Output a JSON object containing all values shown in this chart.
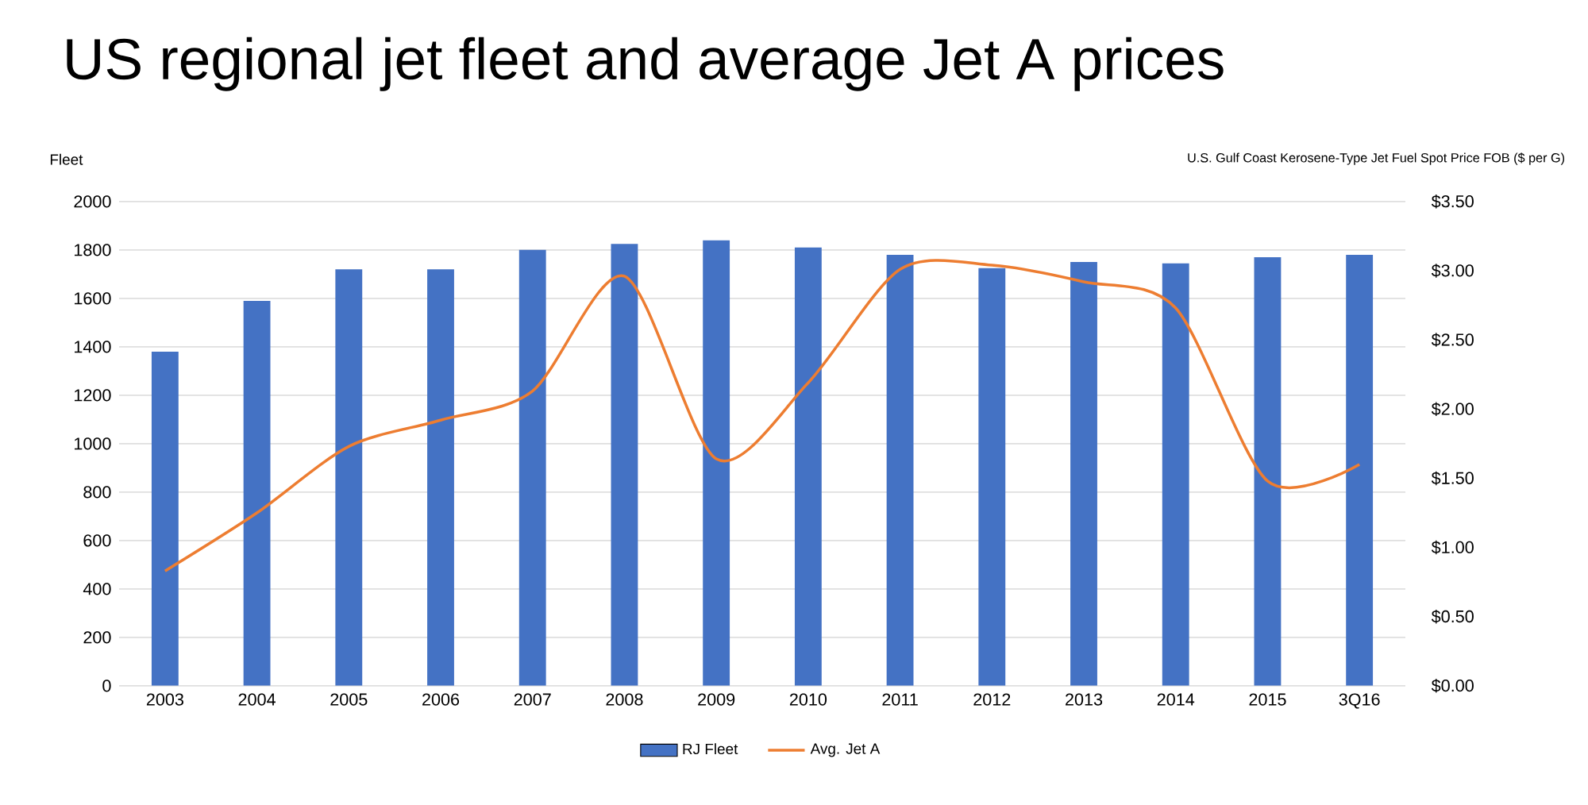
{
  "chart_data": {
    "type": "bar",
    "title": "US regional jet fleet and average Jet A prices",
    "ylabel": "Fleet",
    "y2label": "U.S. Gulf Coast Kerosene-Type Jet Fuel Spot Price FOB ($ per G)",
    "categories": [
      "2003",
      "2004",
      "2005",
      "2006",
      "2007",
      "2008",
      "2009",
      "2010",
      "2011",
      "2012",
      "2013",
      "2014",
      "2015",
      "3Q16"
    ],
    "series": [
      {
        "name": "RJ Fleet",
        "color": "#4472c4",
        "values": [
          1380,
          1590,
          1720,
          1720,
          1800,
          1825,
          1840,
          1810,
          1780,
          1725,
          1750,
          1745,
          1770,
          1780
        ]
      },
      {
        "name": "Avg. Jet A",
        "type": "line",
        "axis": "y2",
        "color": "#ed7d31",
        "values": [
          0.83,
          1.25,
          1.73,
          1.92,
          2.13,
          2.96,
          1.64,
          2.19,
          3.01,
          3.04,
          2.92,
          2.73,
          1.48,
          1.6
        ]
      }
    ],
    "ylim": [
      0,
      2000
    ],
    "yticks": [
      0,
      200,
      400,
      600,
      800,
      1000,
      1200,
      1400,
      1600,
      1800,
      2000
    ],
    "y2lim": [
      0,
      3.5
    ],
    "y2ticks": [
      {
        "value": 0,
        "label": "$0.00"
      },
      {
        "value": 0.5,
        "label": "$0.50"
      },
      {
        "value": 1,
        "label": "$1.00"
      },
      {
        "value": 1.5,
        "label": "$1.50"
      },
      {
        "value": 2,
        "label": "$2.00"
      },
      {
        "value": 2.5,
        "label": "$2.50"
      },
      {
        "value": 3,
        "label": "$3.00"
      },
      {
        "value": 3.5,
        "label": "$3.50"
      }
    ],
    "grid": "y",
    "legend": "bottom",
    "marker": "none"
  }
}
